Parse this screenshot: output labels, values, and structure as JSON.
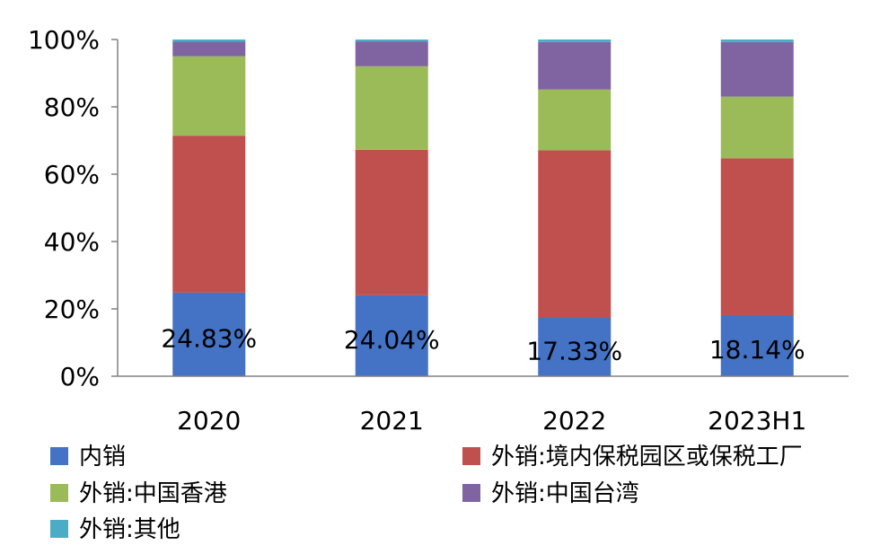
{
  "chart_data": {
    "type": "bar",
    "stacked": true,
    "percent_stacked": true,
    "categories": [
      "2020",
      "2021",
      "2022",
      "2023H1"
    ],
    "series": [
      {
        "name": "内销",
        "color": "#4472C4",
        "values": [
          24.83,
          24.04,
          17.33,
          18.14
        ]
      },
      {
        "name": "外销:境内保税园区或保税工厂",
        "color": "#C0504D",
        "values": [
          46.6,
          43.2,
          49.8,
          46.6
        ]
      },
      {
        "name": "外销:中国香港",
        "color": "#9BBB59",
        "values": [
          23.6,
          24.8,
          18.0,
          18.3
        ]
      },
      {
        "name": "外销:中国台湾",
        "color": "#8064A2",
        "values": [
          4.3,
          7.4,
          14.1,
          16.2
        ]
      },
      {
        "name": "外销:其他",
        "color": "#4BACC6",
        "values": [
          0.67,
          0.56,
          0.77,
          0.76
        ]
      }
    ],
    "data_labels": [
      "24.83%",
      "24.04%",
      "17.33%",
      "18.14%"
    ],
    "y_ticks": [
      "0%",
      "20%",
      "40%",
      "60%",
      "80%",
      "100%"
    ],
    "ylim": [
      0,
      100
    ],
    "grid": false,
    "legend_position": "bottom"
  }
}
